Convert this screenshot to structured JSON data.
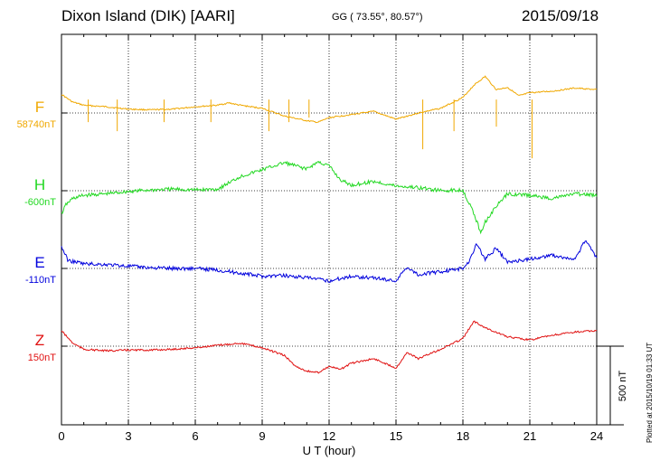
{
  "header": {
    "title": "Dixon Island (DIK)  [AARI]",
    "coordinates": "GG ( 73.55°,  80.57°)",
    "date": "2015/09/18"
  },
  "footer": {
    "plotted": "Plotted at 2015/10/19 01:33 UT"
  },
  "colors": {
    "F": "#f0a800",
    "H": "#22d822",
    "E": "#0000dd",
    "Z": "#e01010"
  },
  "chart_data": {
    "type": "line",
    "xlabel": "U T (hour)",
    "xlim": [
      0,
      24
    ],
    "xticks": [
      "0",
      "3",
      "6",
      "9",
      "12",
      "15",
      "18",
      "21",
      "24"
    ],
    "scale_bar": "500 nT",
    "panel_range_nT": 500,
    "series": [
      {
        "name": "F",
        "baseline": "58740nT",
        "color": "#f0a800",
        "x": [
          0,
          0.5,
          1,
          2,
          3,
          4,
          5,
          6,
          7,
          7.5,
          8,
          9,
          10,
          11,
          11.5,
          12,
          13,
          14,
          15,
          15.5,
          16,
          17,
          18,
          18.5,
          19,
          19.5,
          20,
          20.5,
          21,
          22,
          23,
          24
        ],
        "y": [
          120,
          70,
          50,
          40,
          25,
          20,
          25,
          40,
          50,
          65,
          50,
          30,
          -20,
          -50,
          -60,
          -30,
          -10,
          10,
          -40,
          -20,
          0,
          30,
          100,
          180,
          235,
          150,
          165,
          110,
          130,
          140,
          160,
          150
        ]
      },
      {
        "name": "H",
        "baseline": "-600nT",
        "color": "#22d822",
        "x": [
          0,
          0.2,
          0.5,
          1,
          2,
          3,
          4,
          5,
          6,
          7,
          8,
          9,
          10,
          11,
          11.5,
          12,
          12.5,
          13,
          14,
          15,
          16,
          17,
          18,
          18.5,
          18.8,
          19,
          19.5,
          20,
          21,
          22,
          23,
          24
        ],
        "y": [
          -150,
          -90,
          -50,
          -30,
          -20,
          -5,
          5,
          10,
          5,
          10,
          90,
          135,
          180,
          140,
          185,
          160,
          70,
          35,
          60,
          30,
          20,
          0,
          5,
          -150,
          -270,
          -200,
          -100,
          -20,
          -30,
          -50,
          -20,
          -30
        ]
      },
      {
        "name": "E",
        "baseline": "-110nT",
        "color": "#0000dd",
        "x": [
          0,
          0.3,
          0.7,
          1,
          2,
          3,
          4,
          5,
          6,
          7,
          8,
          9,
          10,
          11,
          12,
          13,
          14,
          15,
          15.5,
          16,
          17,
          18,
          18.3,
          18.6,
          19,
          19.5,
          20,
          21,
          22,
          23,
          23.5,
          24
        ],
        "y": [
          140,
          50,
          40,
          30,
          25,
          15,
          5,
          0,
          0,
          -10,
          -30,
          -50,
          -45,
          -60,
          -80,
          -50,
          -60,
          -80,
          10,
          -40,
          -20,
          0,
          50,
          160,
          60,
          130,
          40,
          60,
          85,
          55,
          180,
          70
        ]
      },
      {
        "name": "Z",
        "baseline": "150nT",
        "color": "#e01010",
        "x": [
          0,
          0.5,
          1,
          2,
          3,
          4,
          5,
          6,
          7,
          8,
          9,
          10,
          10.5,
          11,
          11.5,
          12,
          12.5,
          13,
          14,
          15,
          15.5,
          16,
          17,
          18,
          18.5,
          19,
          19.5,
          20,
          21,
          22,
          23,
          24
        ],
        "y": [
          100,
          20,
          -20,
          -30,
          -25,
          -25,
          -20,
          -10,
          5,
          20,
          -10,
          -60,
          -130,
          -160,
          -170,
          -130,
          -150,
          -110,
          -80,
          -140,
          -40,
          -80,
          -20,
          50,
          160,
          120,
          90,
          60,
          40,
          70,
          90,
          100
        ]
      }
    ]
  }
}
